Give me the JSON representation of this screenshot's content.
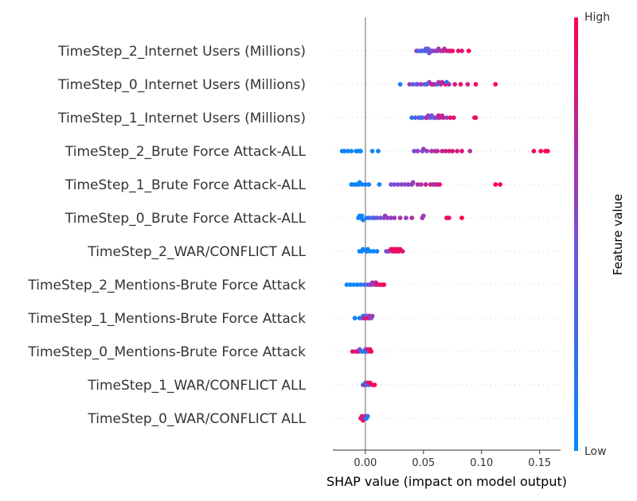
{
  "chart_data": {
    "type": "scatter",
    "subtype": "shap-beeswarm",
    "xlabel": "SHAP value (impact on model output)",
    "xlim": [
      -0.028,
      0.168
    ],
    "xticks": [
      0.0,
      0.05,
      0.1,
      0.15
    ],
    "xtick_labels": [
      "0.00",
      "0.05",
      "0.10",
      "0.15"
    ],
    "colorbar": {
      "title": "Feature value",
      "high_label": "High",
      "low_label": "Low",
      "low_color": "#008bfb",
      "high_color": "#ff0052"
    },
    "features": [
      {
        "name": "TimeStep_2_Internet Users (Millions)",
        "points": [
          [
            0.051,
            0.0
          ],
          [
            0.053,
            0.5
          ],
          [
            0.049,
            0.5
          ],
          [
            0.044,
            0.6
          ],
          [
            0.046,
            0.3
          ],
          [
            0.055,
            0.5
          ],
          [
            0.058,
            0.5
          ],
          [
            0.06,
            0.6
          ],
          [
            0.063,
            0.7
          ],
          [
            0.065,
            0.6
          ],
          [
            0.067,
            0.8
          ],
          [
            0.07,
            0.8
          ],
          [
            0.072,
            0.9
          ],
          [
            0.075,
            1.0
          ],
          [
            0.08,
            0.9
          ],
          [
            0.083,
            0.9
          ],
          [
            0.089,
            1.0
          ],
          [
            0.054,
            0.4
          ],
          [
            0.057,
            0.4
          ],
          [
            0.062,
            0.6
          ],
          [
            0.068,
            0.7
          ],
          [
            0.073,
            0.8
          ],
          [
            0.052,
            0.3
          ],
          [
            0.048,
            0.4
          ]
        ]
      },
      {
        "name": "TimeStep_0_Internet Users (Millions)",
        "points": [
          [
            0.03,
            0.1
          ],
          [
            0.038,
            0.6
          ],
          [
            0.041,
            0.4
          ],
          [
            0.045,
            0.5
          ],
          [
            0.048,
            0.6
          ],
          [
            0.053,
            0.2
          ],
          [
            0.055,
            0.6
          ],
          [
            0.058,
            0.7
          ],
          [
            0.06,
            0.8
          ],
          [
            0.063,
            0.6
          ],
          [
            0.066,
            0.8
          ],
          [
            0.069,
            0.9
          ],
          [
            0.072,
            0.7
          ],
          [
            0.077,
            0.8
          ],
          [
            0.082,
            0.9
          ],
          [
            0.088,
            0.8
          ],
          [
            0.095,
            1.0
          ],
          [
            0.112,
            1.0
          ],
          [
            0.044,
            0.3
          ],
          [
            0.051,
            0.5
          ],
          [
            0.065,
            0.7
          ],
          [
            0.07,
            0.1
          ],
          [
            0.062,
            0.2
          ],
          [
            0.057,
            0.9
          ]
        ]
      },
      {
        "name": "TimeStep_1_Internet Users (Millions)",
        "points": [
          [
            0.04,
            0.2
          ],
          [
            0.043,
            0.3
          ],
          [
            0.046,
            0.4
          ],
          [
            0.049,
            0.3
          ],
          [
            0.052,
            0.5
          ],
          [
            0.054,
            0.6
          ],
          [
            0.057,
            0.5
          ],
          [
            0.059,
            0.4
          ],
          [
            0.062,
            0.6
          ],
          [
            0.064,
            0.7
          ],
          [
            0.067,
            0.8
          ],
          [
            0.07,
            0.6
          ],
          [
            0.073,
            0.9
          ],
          [
            0.076,
            0.9
          ],
          [
            0.094,
            1.0
          ],
          [
            0.095,
            0.9
          ],
          [
            0.053,
            0.8
          ],
          [
            0.063,
            0.9
          ],
          [
            0.048,
            0.2
          ],
          [
            0.056,
            0.3
          ],
          [
            0.06,
            0.5
          ],
          [
            0.066,
            0.7
          ]
        ]
      },
      {
        "name": "TimeStep_2_Brute Force Attack-ALL",
        "points": [
          [
            -0.018,
            0.05
          ],
          [
            -0.015,
            0.1
          ],
          [
            -0.02,
            0.05
          ],
          [
            -0.012,
            0.0
          ],
          [
            -0.008,
            0.05
          ],
          [
            -0.006,
            0.1
          ],
          [
            -0.004,
            0.0
          ],
          [
            0.006,
            0.05
          ],
          [
            0.011,
            0.1
          ],
          [
            0.042,
            0.5
          ],
          [
            0.045,
            0.6
          ],
          [
            0.049,
            0.5
          ],
          [
            0.053,
            0.6
          ],
          [
            0.057,
            0.7
          ],
          [
            0.062,
            0.7
          ],
          [
            0.066,
            0.8
          ],
          [
            0.069,
            0.8
          ],
          [
            0.072,
            0.8
          ],
          [
            0.075,
            0.9
          ],
          [
            0.079,
            0.8
          ],
          [
            0.083,
            0.9
          ],
          [
            0.09,
            0.7
          ],
          [
            0.145,
            1.0
          ],
          [
            0.151,
            1.0
          ],
          [
            0.155,
            1.0
          ],
          [
            0.157,
            1.0
          ],
          [
            0.05,
            0.6
          ],
          [
            0.06,
            0.7
          ]
        ]
      },
      {
        "name": "TimeStep_1_Brute Force Attack-ALL",
        "points": [
          [
            -0.012,
            0.05
          ],
          [
            -0.008,
            0.1
          ],
          [
            -0.005,
            0.0
          ],
          [
            -0.003,
            0.05
          ],
          [
            0.0,
            0.1
          ],
          [
            0.003,
            0.05
          ],
          [
            -0.006,
            0.1
          ],
          [
            -0.01,
            0.0
          ],
          [
            0.012,
            0.1
          ],
          [
            0.022,
            0.5
          ],
          [
            0.025,
            0.5
          ],
          [
            0.028,
            0.5
          ],
          [
            0.031,
            0.6
          ],
          [
            0.034,
            0.5
          ],
          [
            0.037,
            0.6
          ],
          [
            0.041,
            0.6
          ],
          [
            0.045,
            0.7
          ],
          [
            0.048,
            0.7
          ],
          [
            0.052,
            0.8
          ],
          [
            0.056,
            0.8
          ],
          [
            0.06,
            0.7
          ],
          [
            0.062,
            0.8
          ],
          [
            0.064,
            0.9
          ],
          [
            0.112,
            1.0
          ],
          [
            0.116,
            1.0
          ],
          [
            0.04,
            0.6
          ],
          [
            0.058,
            0.7
          ]
        ]
      },
      {
        "name": "TimeStep_0_Brute Force Attack-ALL",
        "points": [
          [
            -0.006,
            0.05
          ],
          [
            -0.003,
            0.1
          ],
          [
            -0.005,
            0.0
          ],
          [
            -0.002,
            0.05
          ],
          [
            0.001,
            0.1
          ],
          [
            0.003,
            0.2
          ],
          [
            0.006,
            0.3
          ],
          [
            0.01,
            0.4
          ],
          [
            0.013,
            0.5
          ],
          [
            0.016,
            0.5
          ],
          [
            0.019,
            0.6
          ],
          [
            0.022,
            0.6
          ],
          [
            0.025,
            0.6
          ],
          [
            0.03,
            0.7
          ],
          [
            0.035,
            0.6
          ],
          [
            0.04,
            0.7
          ],
          [
            0.049,
            0.7
          ],
          [
            0.05,
            0.6
          ],
          [
            0.07,
            1.0
          ],
          [
            0.072,
            0.9
          ],
          [
            0.083,
            1.0
          ],
          [
            0.008,
            0.4
          ],
          [
            0.017,
            0.6
          ],
          [
            -0.004,
            0.1
          ]
        ]
      },
      {
        "name": "TimeStep_2_WAR/CONFLICT ALL",
        "points": [
          [
            -0.005,
            0.05
          ],
          [
            -0.003,
            0.1
          ],
          [
            0.001,
            0.05
          ],
          [
            0.004,
            0.0
          ],
          [
            0.007,
            0.1
          ],
          [
            0.01,
            0.05
          ],
          [
            0.018,
            0.5
          ],
          [
            0.02,
            0.6
          ],
          [
            0.022,
            0.9
          ],
          [
            0.024,
            1.0
          ],
          [
            0.025,
            0.9
          ],
          [
            0.026,
            0.9
          ],
          [
            0.028,
            1.0
          ],
          [
            0.03,
            0.9
          ],
          [
            0.032,
            0.9
          ],
          [
            0.027,
            1.0
          ],
          [
            0.023,
            0.8
          ],
          [
            0.029,
            0.9
          ],
          [
            -0.002,
            0.0
          ],
          [
            0.002,
            0.1
          ]
        ]
      },
      {
        "name": "TimeStep_2_Mentions-Brute Force Attack",
        "points": [
          [
            -0.016,
            0.05
          ],
          [
            -0.013,
            0.05
          ],
          [
            -0.01,
            0.0
          ],
          [
            -0.007,
            0.1
          ],
          [
            -0.004,
            0.1
          ],
          [
            -0.001,
            0.2
          ],
          [
            0.002,
            0.4
          ],
          [
            0.004,
            0.5
          ],
          [
            0.006,
            0.6
          ],
          [
            0.008,
            0.7
          ],
          [
            0.01,
            0.8
          ],
          [
            0.012,
            0.9
          ],
          [
            0.014,
            0.9
          ],
          [
            0.016,
            1.0
          ],
          [
            0.005,
            0.6
          ],
          [
            0.009,
            0.8
          ]
        ]
      },
      {
        "name": "TimeStep_1_Mentions-Brute Force Attack",
        "points": [
          [
            -0.009,
            0.1
          ],
          [
            -0.005,
            0.05
          ],
          [
            -0.002,
            0.2
          ],
          [
            0.0,
            0.4
          ],
          [
            0.002,
            0.5
          ],
          [
            0.004,
            0.7
          ],
          [
            0.006,
            0.6
          ],
          [
            -0.001,
            0.9
          ],
          [
            0.003,
            0.9
          ],
          [
            0.005,
            0.5
          ],
          [
            -0.003,
            0.3
          ],
          [
            0.001,
            0.9
          ]
        ]
      },
      {
        "name": "TimeStep_0_Mentions-Brute Force Attack",
        "points": [
          [
            -0.011,
            0.9
          ],
          [
            -0.008,
            0.95
          ],
          [
            -0.005,
            0.5
          ],
          [
            -0.003,
            0.2
          ],
          [
            -0.001,
            0.1
          ],
          [
            0.001,
            0.2
          ],
          [
            0.003,
            0.6
          ],
          [
            0.004,
            0.9
          ],
          [
            0.005,
            1.0
          ],
          [
            -0.006,
            0.8
          ],
          [
            0.002,
            0.9
          ],
          [
            0.0,
            0.3
          ]
        ]
      },
      {
        "name": "TimeStep_1_WAR/CONFLICT ALL",
        "points": [
          [
            -0.002,
            0.1
          ],
          [
            0.0,
            0.2
          ],
          [
            0.002,
            0.9
          ],
          [
            0.004,
            0.95
          ],
          [
            0.006,
            0.9
          ],
          [
            0.008,
            1.0
          ],
          [
            -0.001,
            0.8
          ],
          [
            0.001,
            0.2
          ],
          [
            0.003,
            0.3
          ]
        ]
      },
      {
        "name": "TimeStep_0_WAR/CONFLICT ALL",
        "points": [
          [
            -0.004,
            0.9
          ],
          [
            -0.002,
            0.95
          ],
          [
            0.0,
            0.3
          ],
          [
            0.001,
            0.1
          ],
          [
            0.002,
            0.2
          ],
          [
            -0.003,
            0.8
          ],
          [
            0.0,
            0.9
          ]
        ]
      }
    ]
  }
}
